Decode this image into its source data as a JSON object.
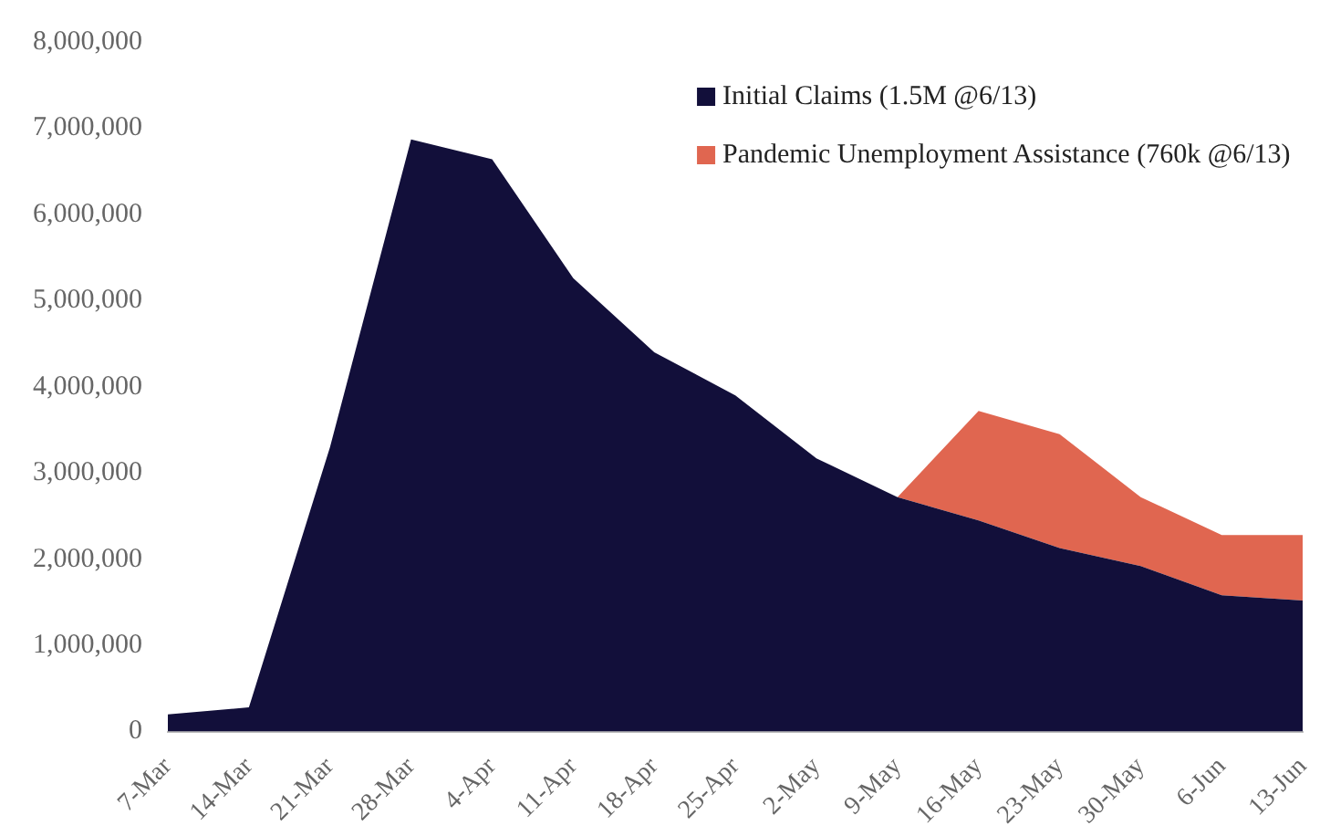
{
  "chart_data": {
    "type": "area",
    "stacked": true,
    "categories": [
      "7-Mar",
      "14-Mar",
      "21-Mar",
      "28-Mar",
      "4-Apr",
      "11-Apr",
      "18-Apr",
      "25-Apr",
      "2-May",
      "9-May",
      "16-May",
      "23-May",
      "30-May",
      "6-Jun",
      "13-Jun"
    ],
    "series": [
      {
        "name": "Initial Claims (1.5M @6/13)",
        "color": "#120f3a",
        "values": [
          200000,
          280000,
          3300000,
          6870000,
          6640000,
          5260000,
          4400000,
          3900000,
          3170000,
          2720000,
          2450000,
          2130000,
          1920000,
          1580000,
          1520000
        ]
      },
      {
        "name": "Pandemic Unemployment Assistance (760k @6/13)",
        "color": "#e06650",
        "values": [
          null,
          null,
          null,
          null,
          null,
          null,
          null,
          null,
          null,
          0,
          1270000,
          1320000,
          800000,
          700000,
          760000
        ]
      }
    ],
    "ylim": [
      0,
      8000000
    ],
    "yticks": [
      0,
      {
        "value": 1000000,
        "label": "1,000,000"
      },
      {
        "value": 2000000,
        "label": "2,000,000"
      },
      {
        "value": 3000000,
        "label": "3,000,000"
      },
      {
        "value": 4000000,
        "label": "4,000,000"
      },
      {
        "value": 5000000,
        "label": "5,000,000"
      },
      {
        "value": 6000000,
        "label": "6,000,000"
      },
      {
        "value": 7000000,
        "label": "7,000,000"
      },
      {
        "value": 8000000,
        "label": "8,000,000"
      }
    ],
    "grid": false,
    "legend": "top right"
  }
}
